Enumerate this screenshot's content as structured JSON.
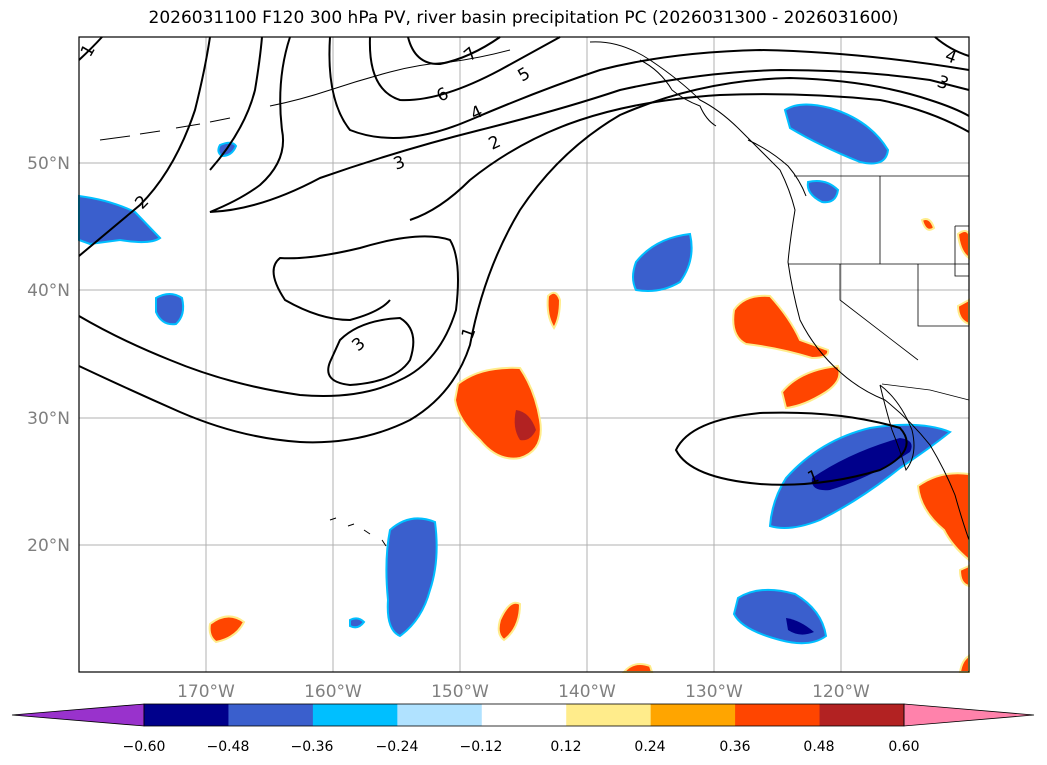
{
  "title": "2026031100 F120 300 hPa PV, river basin precipitation PC (2026031300 - 2026031600)",
  "map": {
    "lat_labels": [
      "50°N",
      "40°N",
      "30°N",
      "20°N"
    ],
    "lon_labels": [
      "170°W",
      "160°W",
      "150°W",
      "140°W",
      "130°W",
      "120°W"
    ],
    "contour_labels": [
      "1",
      "2",
      "7",
      "5",
      "6",
      "4",
      "2",
      "3",
      "3",
      "1",
      "3",
      "4",
      "1"
    ]
  },
  "colorbar": {
    "tick_labels": [
      "−0.60",
      "−0.48",
      "−0.36",
      "−0.24",
      "−0.12",
      "0.12",
      "0.24",
      "0.36",
      "0.48",
      "0.60"
    ],
    "colors": [
      "#9932cc",
      "#00008b",
      "#3a5fcd",
      "#00bfff",
      "#b0e2ff",
      "#ffffff",
      "#ffec8b",
      "#ffa500",
      "#ff4500",
      "#b22222",
      "#ff82ab"
    ]
  },
  "colors": {
    "negative_core": "#00008b",
    "negative": "#3a5fcd",
    "negative_edge": "#00bfff",
    "positive": "#ff4500",
    "positive_core": "#b22222",
    "positive_edge": "#ffec8b",
    "grid": "#b0b0b0"
  }
}
